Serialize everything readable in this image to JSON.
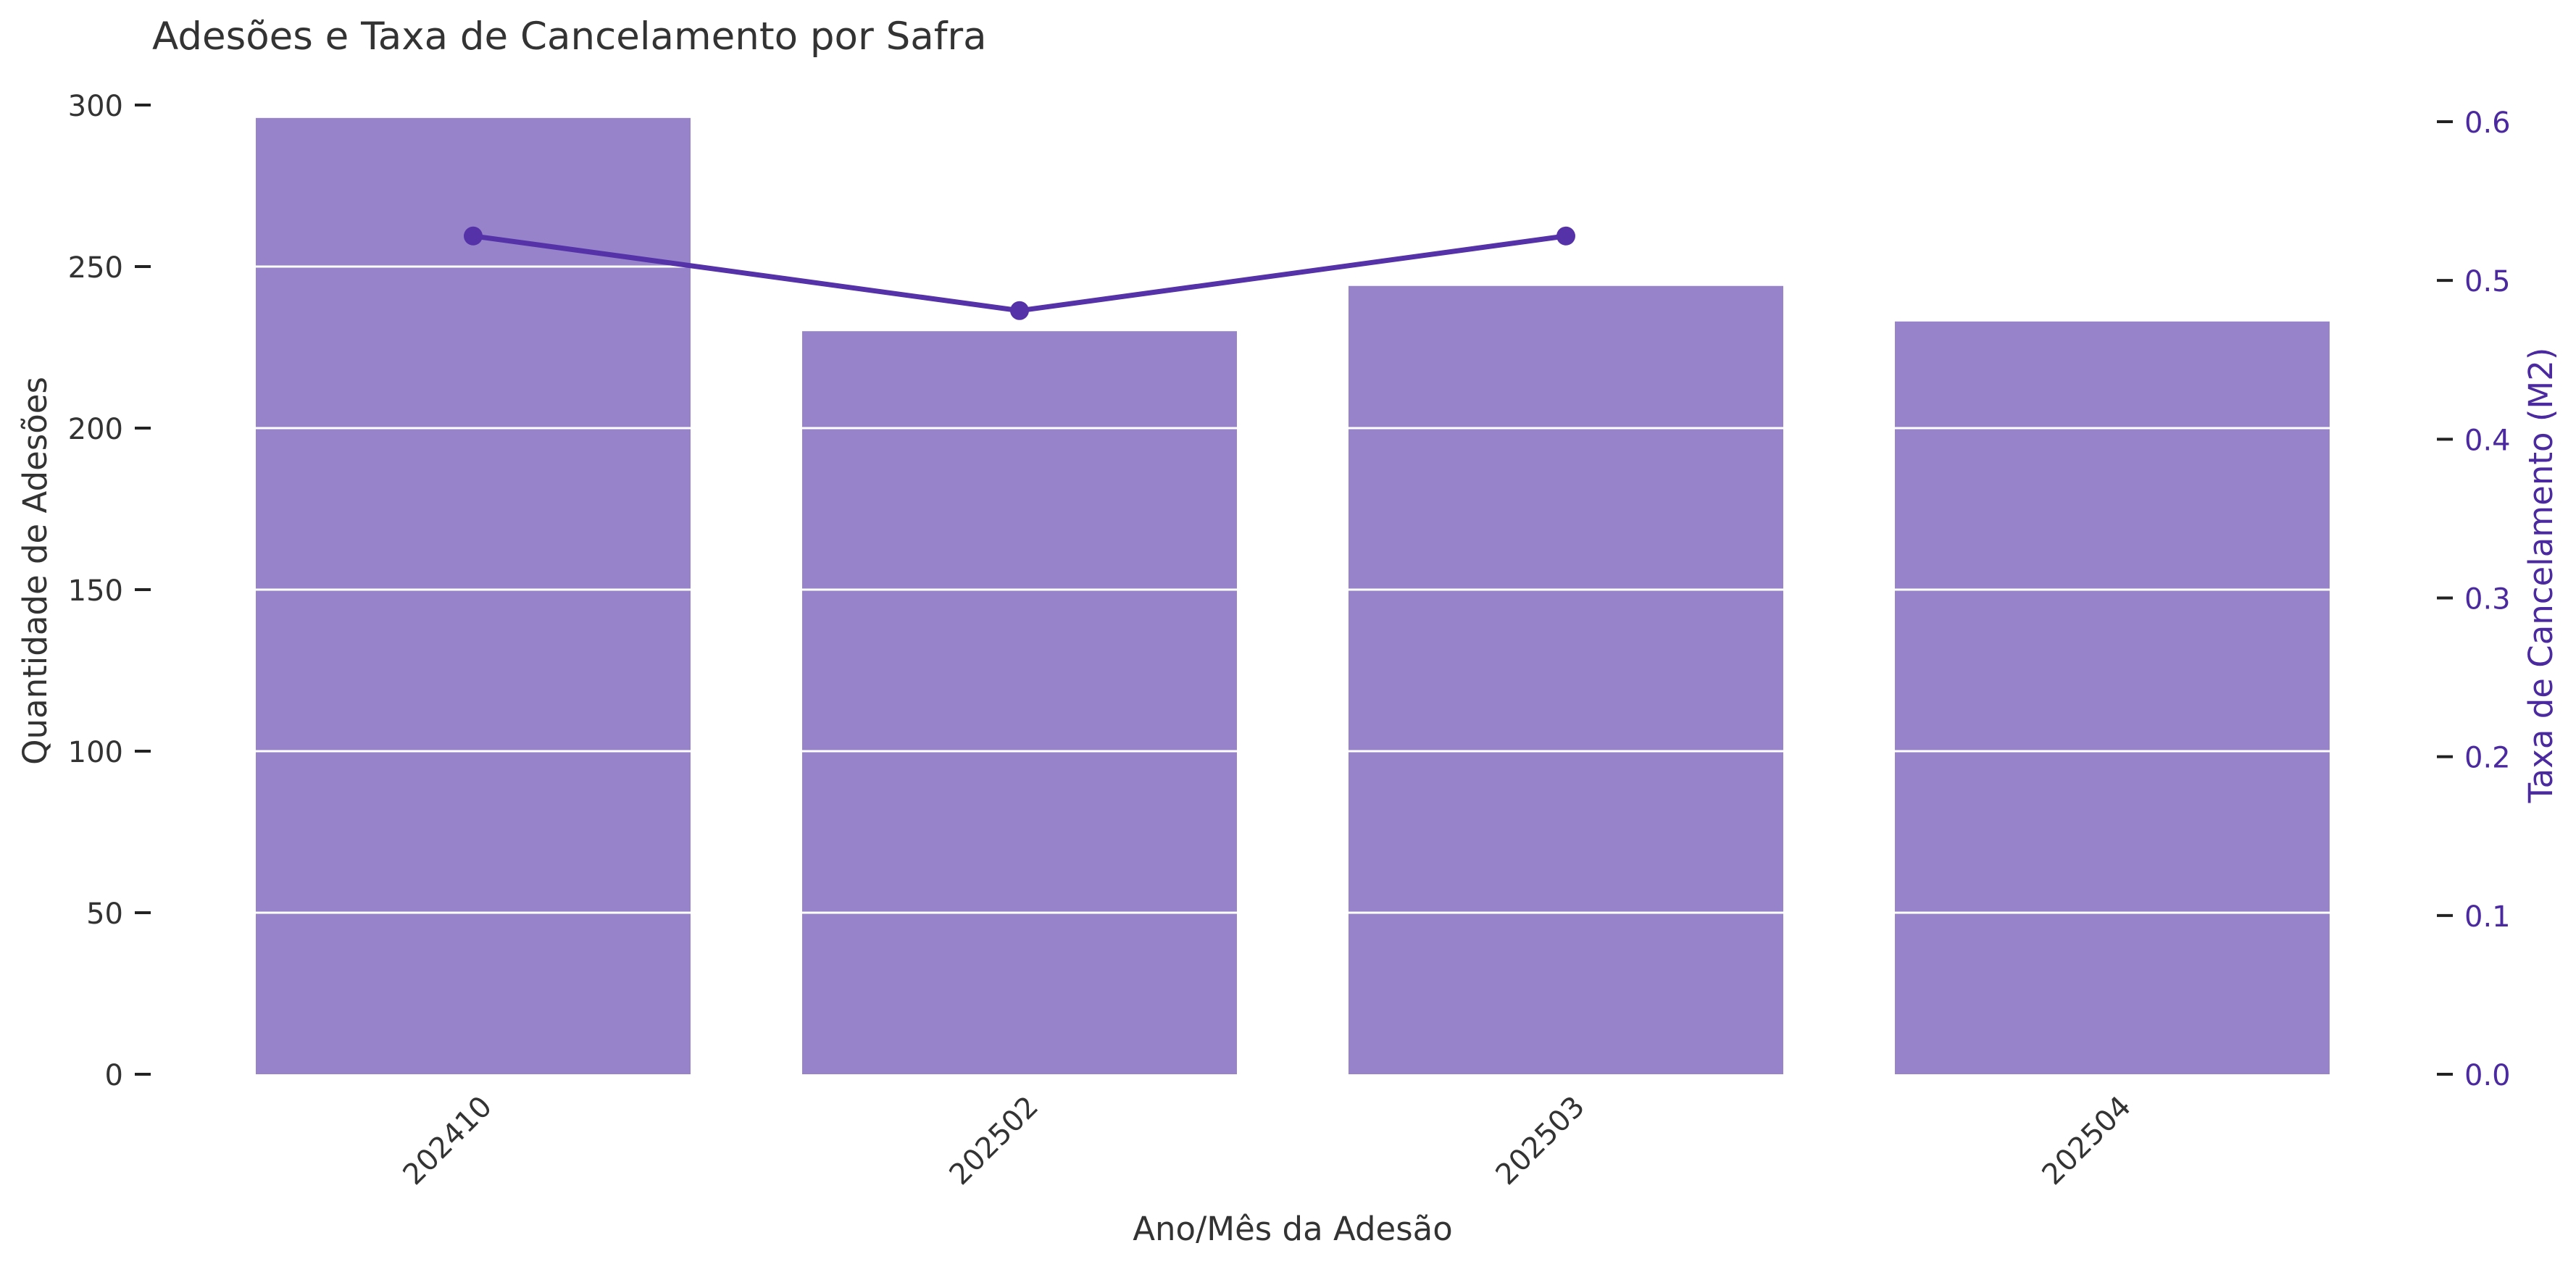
{
  "chart_data": {
    "type": "bar",
    "title": "Adesões e Taxa de Cancelamento por Safra",
    "xlabel": "Ano/Mês da Adesão",
    "ylabel": "Quantidade de Adesões",
    "y2label": "Taxa de Cancelamento (M2)",
    "categories": [
      "202410",
      "202502",
      "202503",
      "202504"
    ],
    "bar_series": {
      "values": [
        296,
        230,
        244,
        233
      ],
      "color": "#9683CA"
    },
    "line_series": {
      "values": [
        0.528,
        0.481,
        0.528,
        null
      ],
      "color": "#5532A8"
    },
    "ylim": [
      0,
      300
    ],
    "y_ticks": [
      0,
      50,
      100,
      150,
      200,
      250,
      300
    ],
    "y2lim": [
      0,
      0.6
    ],
    "y2_ticks": [
      "0.0",
      "0.1",
      "0.2",
      "0.3",
      "0.4",
      "0.5",
      "0.6"
    ],
    "grid": true,
    "colors": {
      "text": "#333333",
      "axis_right": "#4B2AA0",
      "grid": "#ffffff"
    }
  }
}
